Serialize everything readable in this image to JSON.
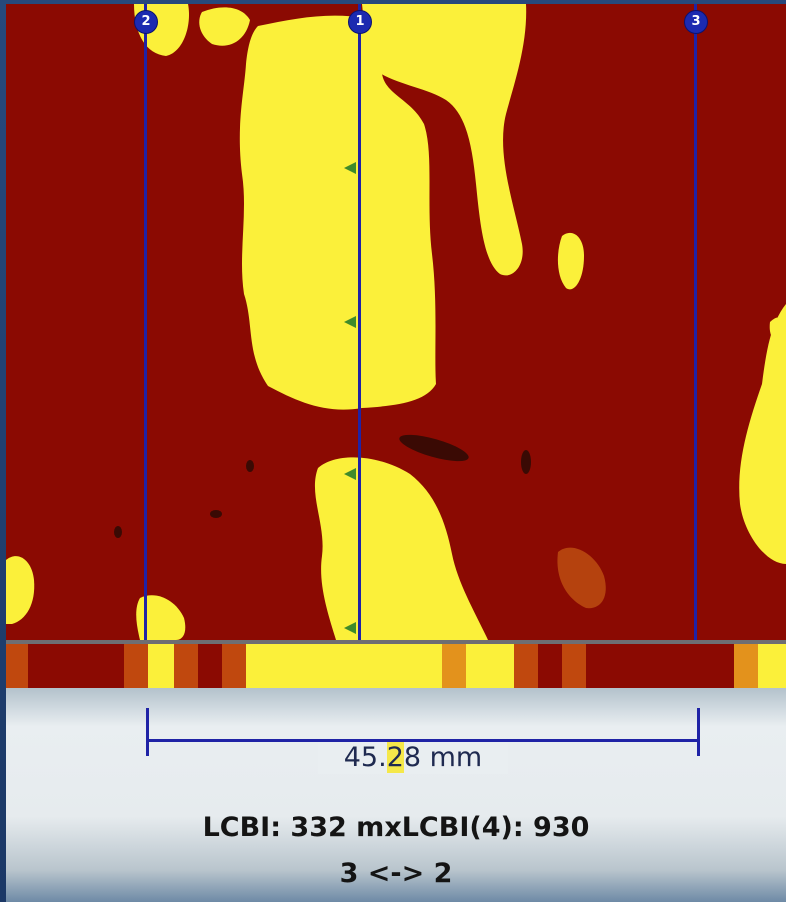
{
  "colors": {
    "background_red": "#8b0a02",
    "active_yellow": "#fbf03a",
    "cursor_blue": "#1f23a6",
    "marker_green": "#3f8a2a",
    "panel": "#e9eef1"
  },
  "cursors": [
    {
      "id": "2",
      "label": "2"
    },
    {
      "id": "1",
      "label": "1"
    },
    {
      "id": "3",
      "label": "3"
    }
  ],
  "measurement": {
    "value_prefix": "45.",
    "value_highlight": "2",
    "value_suffix": "8 mm"
  },
  "stats": {
    "lcbi_line": "LCBI: 332 mxLCBI(4): 930",
    "range_line": "3 <-> 2"
  },
  "icons": [
    "cursor-knob-icon",
    "frame-marker-icon"
  ]
}
